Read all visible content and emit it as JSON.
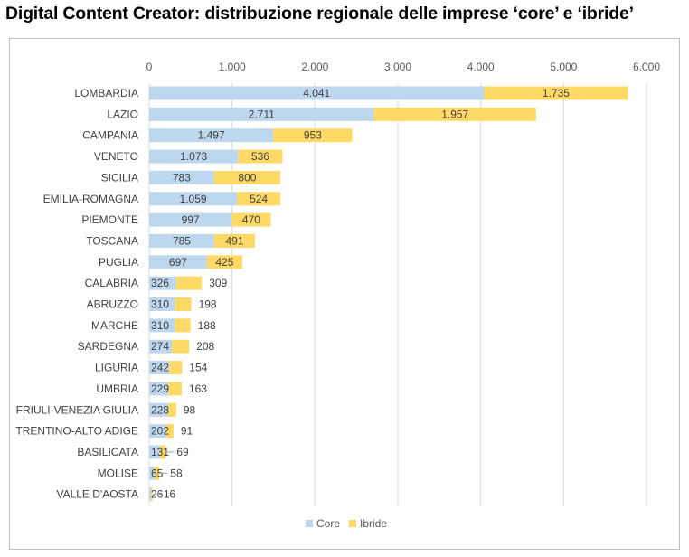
{
  "title": "Digital Content Creator: distribuzione regionale delle imprese ‘core’ e ‘ibride’",
  "chart_data": {
    "type": "bar",
    "orientation": "horizontal",
    "stacked": true,
    "title": "Digital Content Creator: distribuzione regionale delle imprese ‘core’ e ‘ibride’",
    "xlim": [
      0,
      6000
    ],
    "x_ticks": [
      "0",
      "1.000",
      "2.000",
      "3.000",
      "4.000",
      "5.000",
      "6.000"
    ],
    "x_tick_values": [
      0,
      1000,
      2000,
      3000,
      4000,
      5000,
      6000
    ],
    "grid": true,
    "legend_position": "bottom",
    "categories": [
      "LOMBARDIA",
      "LAZIO",
      "CAMPANIA",
      "VENETO",
      "SICILIA",
      "EMILIA-ROMAGNA",
      "PIEMONTE",
      "TOSCANA",
      "PUGLIA",
      "CALABRIA",
      "ABRUZZO",
      "MARCHE",
      "SARDEGNA",
      "LIGURIA",
      "UMBRIA",
      "FRIULI-VENEZIA GIULIA",
      "TRENTINO-ALTO ADIGE",
      "BASILICATA",
      "MOLISE",
      "VALLE D'AOSTA"
    ],
    "series": [
      {
        "name": "Core",
        "color": "#bdd7ee",
        "values": [
          4041,
          2711,
          1497,
          1073,
          783,
          1059,
          997,
          785,
          697,
          326,
          310,
          310,
          274,
          242,
          229,
          228,
          202,
          131,
          65,
          26
        ],
        "labels": [
          "4.041",
          "2.711",
          "1.497",
          "1.073",
          "783",
          "1.059",
          "997",
          "785",
          "697",
          "326",
          "310",
          "310",
          "274",
          "242",
          "229",
          "228",
          "202",
          "131",
          "65",
          "26"
        ]
      },
      {
        "name": "Ibride",
        "color": "#ffd966",
        "values": [
          1735,
          1957,
          953,
          536,
          800,
          524,
          470,
          491,
          425,
          309,
          198,
          188,
          208,
          154,
          163,
          98,
          91,
          69,
          58,
          16
        ],
        "labels": [
          "1.735",
          "1.957",
          "953",
          "536",
          "800",
          "524",
          "470",
          "491",
          "425",
          "309",
          "198",
          "188",
          "208",
          "154",
          "163",
          "98",
          "91",
          "69",
          "58",
          "16"
        ]
      }
    ]
  }
}
